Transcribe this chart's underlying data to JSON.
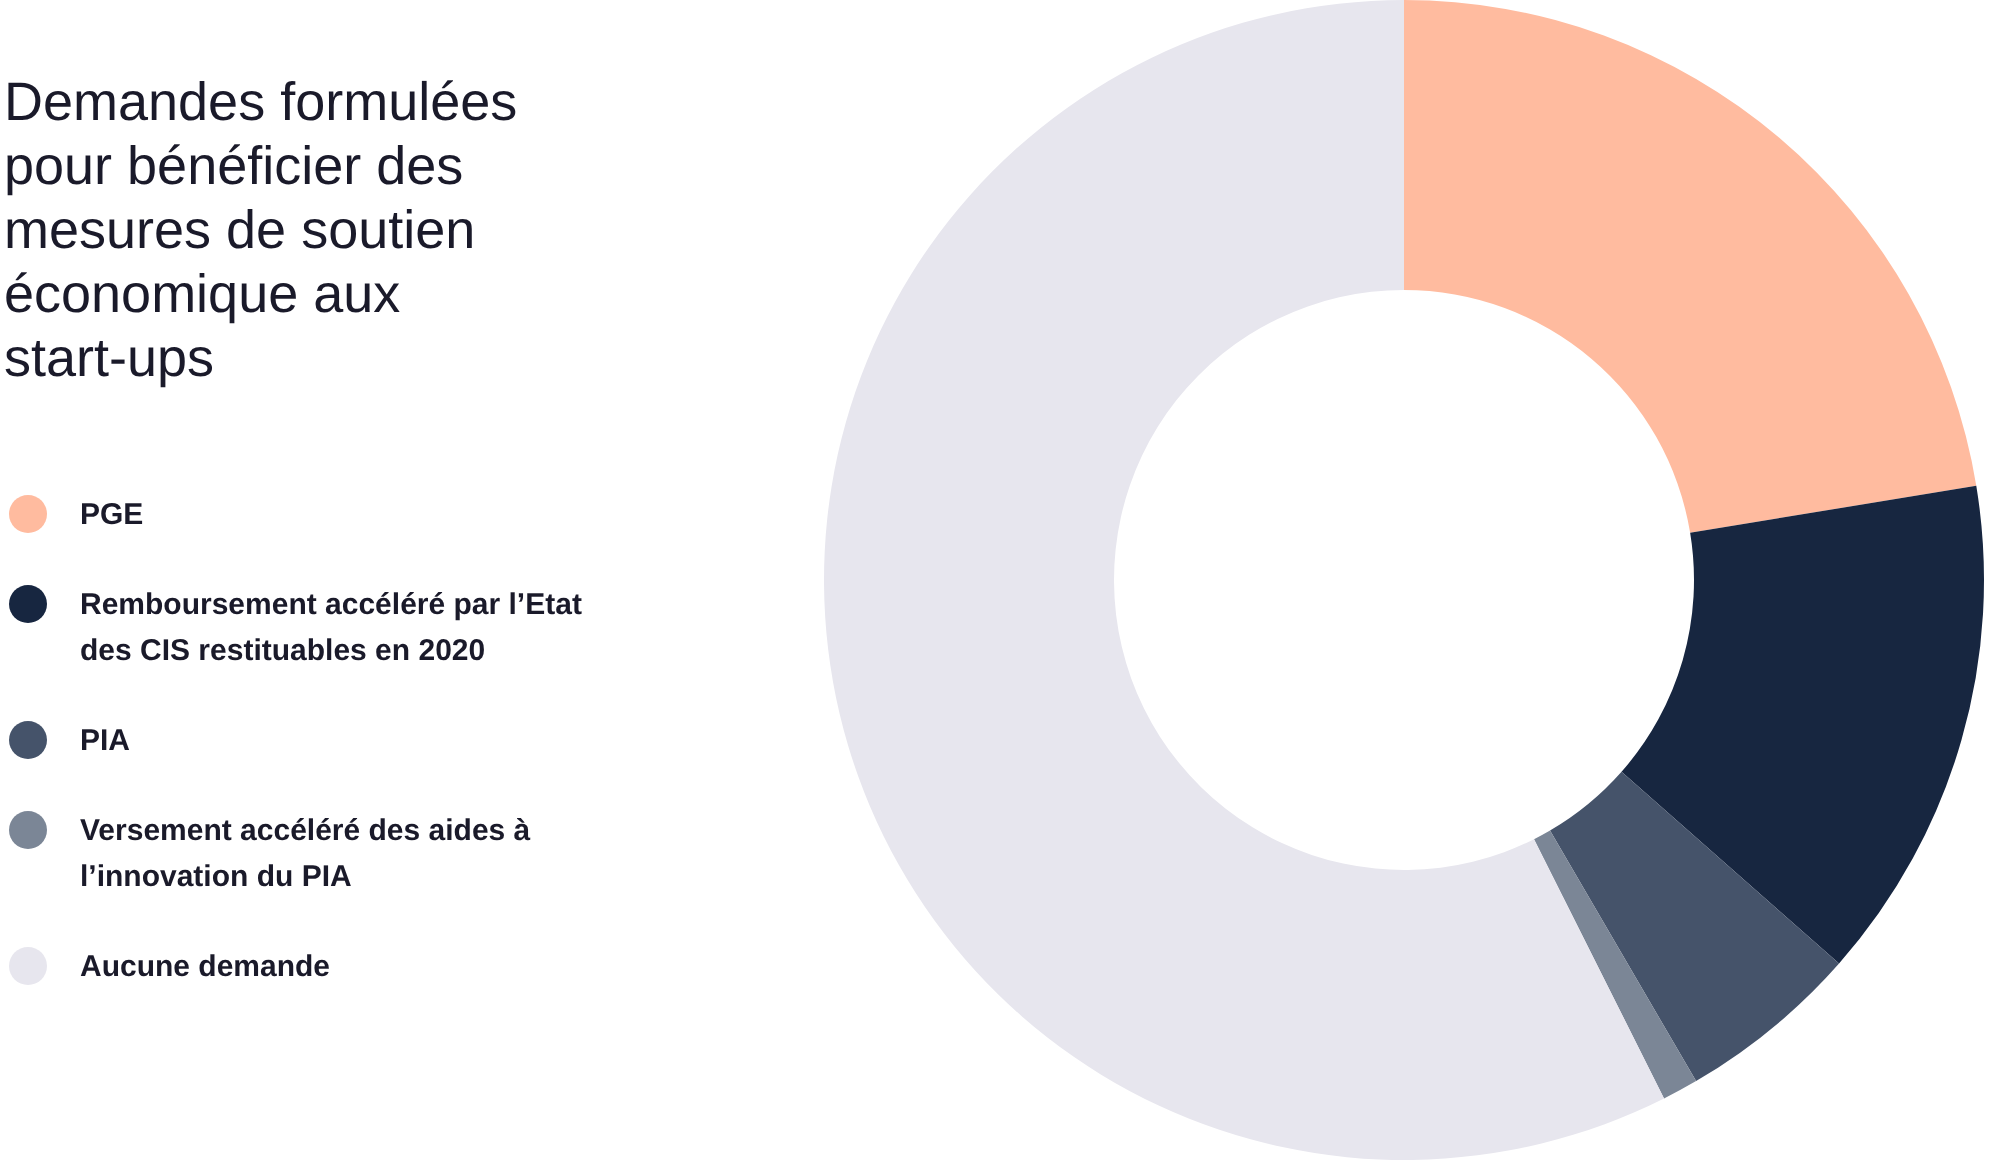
{
  "chart_data": {
    "type": "donut",
    "title": "Demandes formulées pour bénéficier des mesures de soutien économique aux start-ups",
    "categories": [
      "PGE",
      "Remboursement accéléré par l’Etat des CIS restituables en 2020",
      "PIA",
      "Versement accéléré des aides à l’innovation du PIA",
      "Aucune demande"
    ],
    "values": [
      22.4,
      14.1,
      5.1,
      1,
      57.4
    ],
    "colors": [
      "#ffbb9f",
      "#172640",
      "#45536a",
      "#7b8696",
      "#e7e6ee"
    ],
    "legend": "left"
  }
}
